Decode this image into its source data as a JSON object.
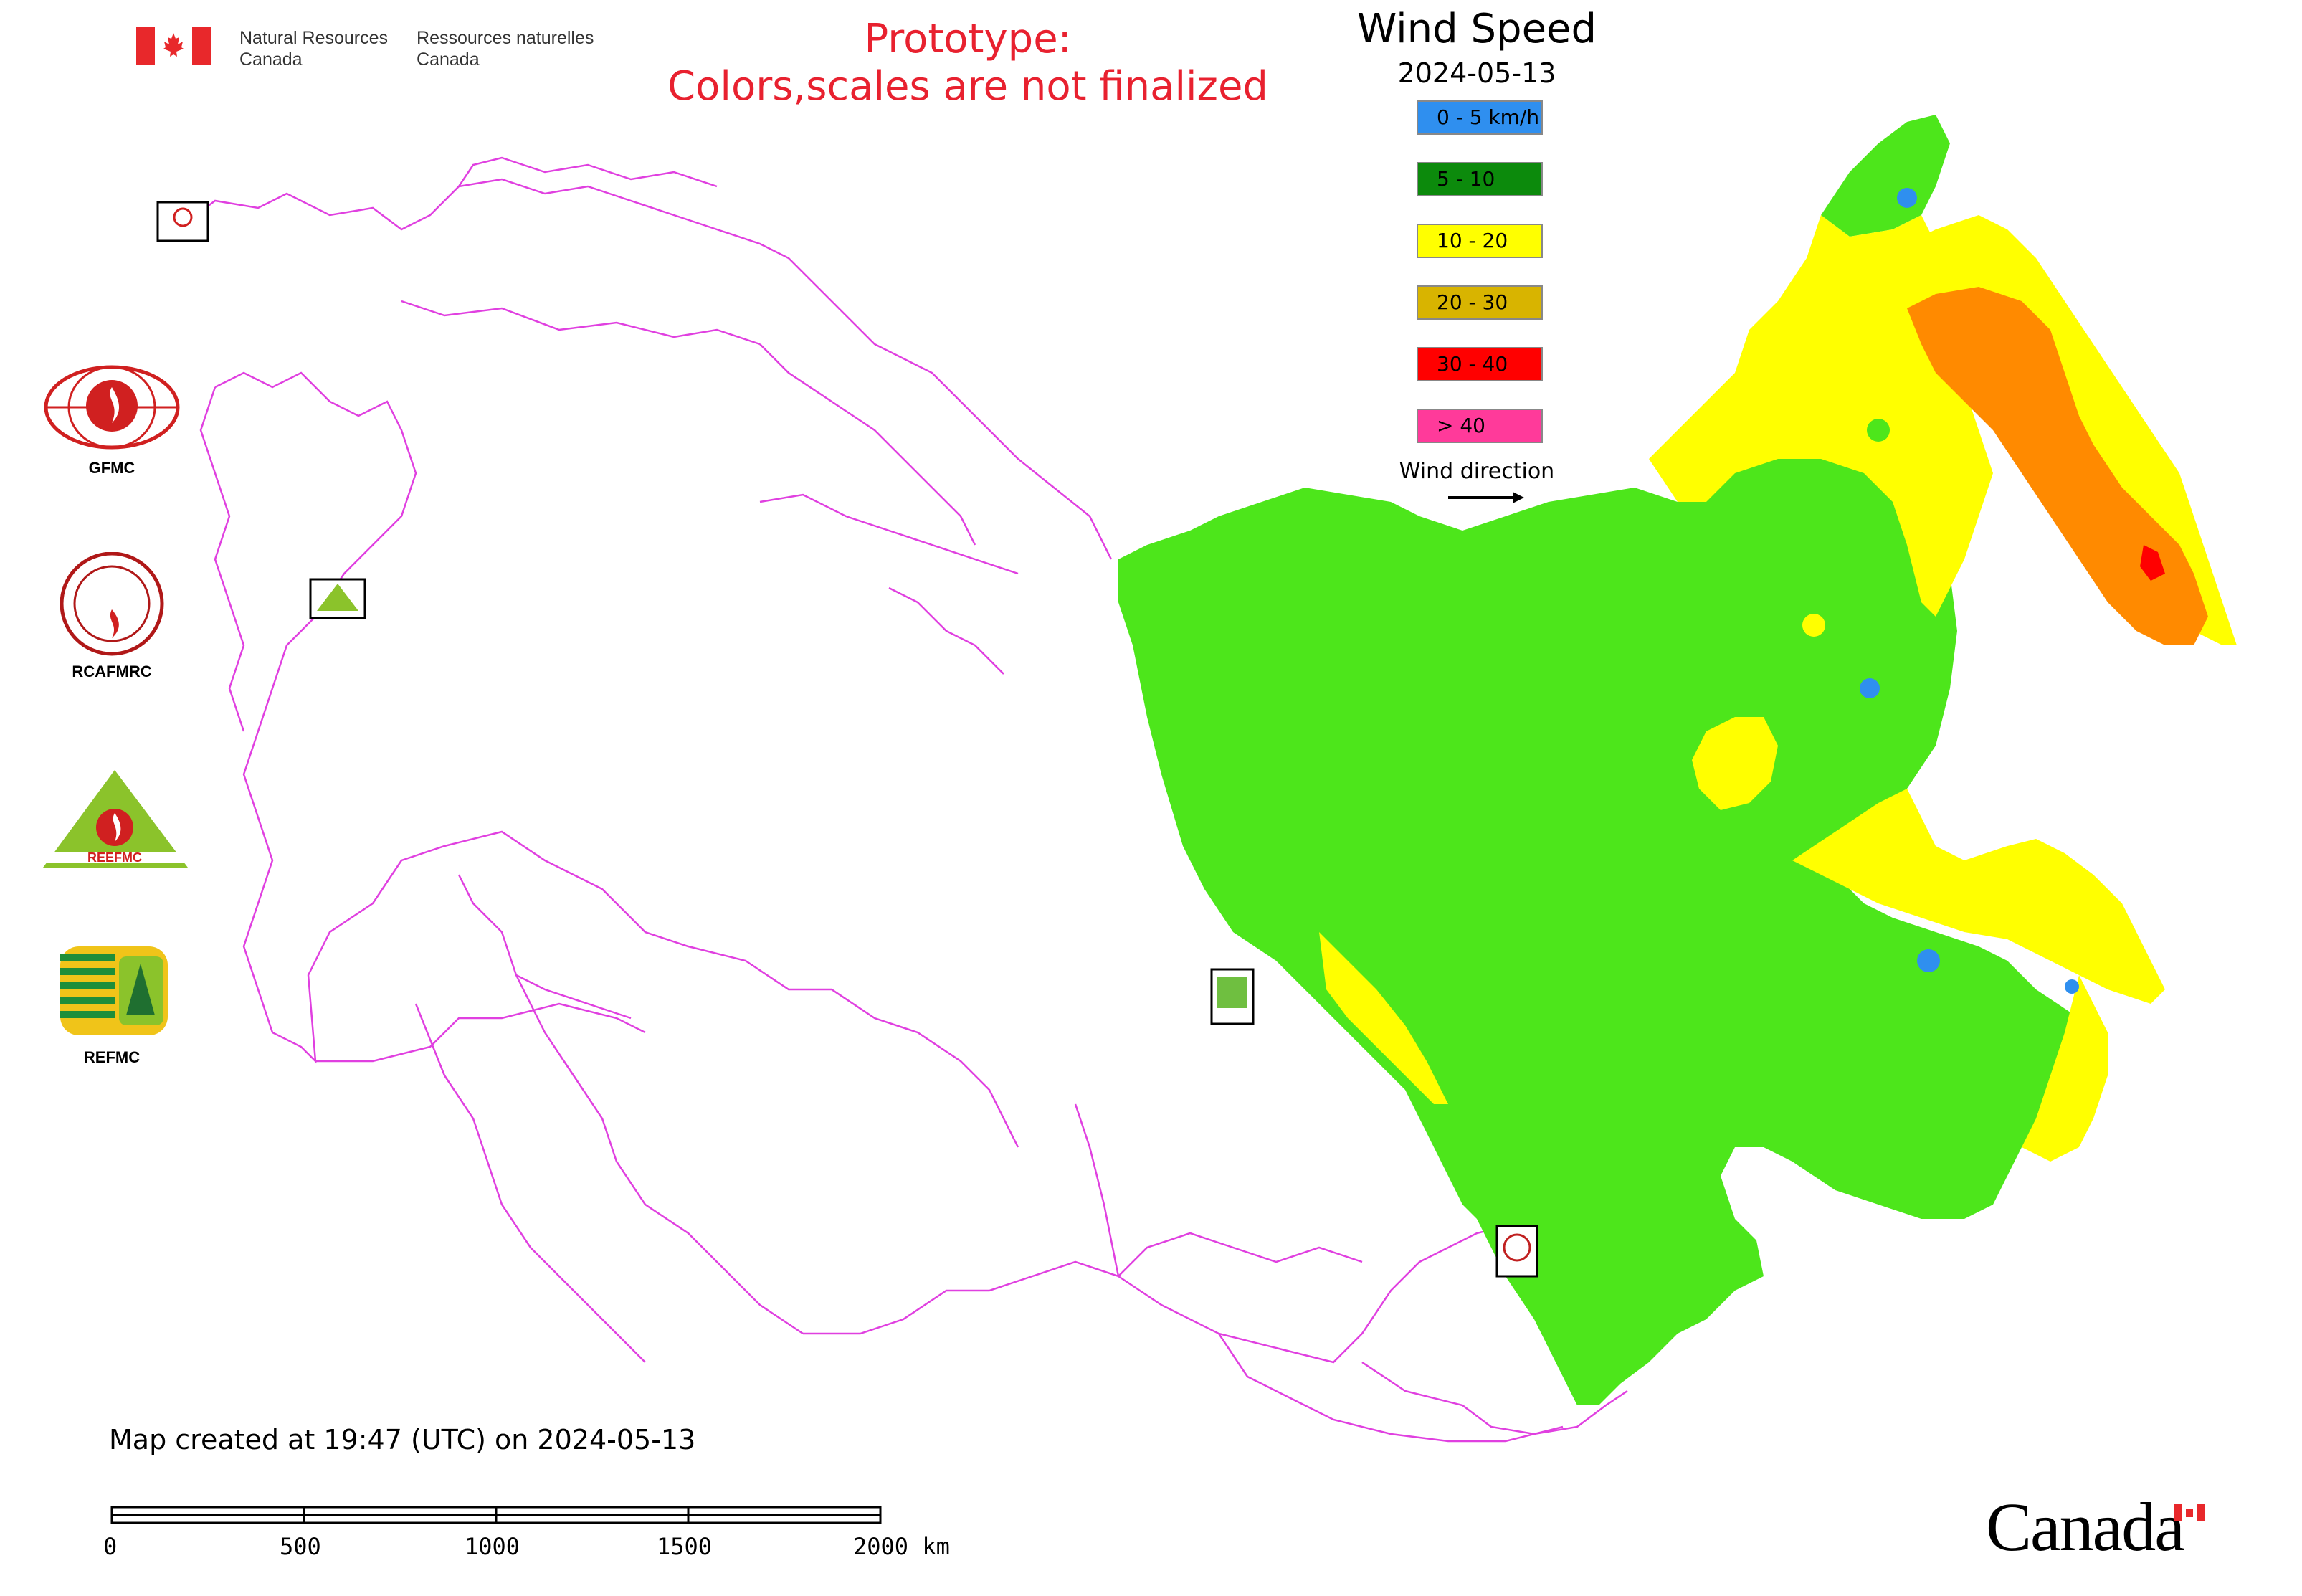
{
  "header": {
    "org_en_line1": "Natural Resources",
    "org_en_line2": "Canada",
    "org_fr_line1": "Ressources naturelles",
    "org_fr_line2": "Canada",
    "prototype_line1": "Prototype:",
    "prototype_line2": "Colors,scales are not finalized"
  },
  "legend": {
    "title": "Wind Speed",
    "date": "2024-05-13",
    "classes": [
      {
        "label": "0 - 5 km/h",
        "color": "#2f8fef"
      },
      {
        "label": "5 - 10",
        "color": "#0c8a0c"
      },
      {
        "label": "10 - 20",
        "color": "#ffff00"
      },
      {
        "label": "20 - 30",
        "color": "#d8b400"
      },
      {
        "label": "30 - 40",
        "color": "#ff0000"
      },
      {
        "label": "> 40",
        "color": "#ff3a9a"
      }
    ],
    "wind_direction_label": "Wind direction"
  },
  "map_colors": {
    "land_green": "#4de61b",
    "yellow": "#ffff00",
    "orange": "#ff8a00",
    "red": "#ff0000",
    "blue": "#2f8fef",
    "boundary": "#e040e0"
  },
  "logos": {
    "gfmc": "GFMC",
    "rcafmrc": "RCAFMRC",
    "reefmc": "REEFMC",
    "refmc": "REFMC"
  },
  "footer": {
    "created": "Map created at 19:47 (UTC) on 2024-05-13",
    "scale_labels": [
      "0",
      "500",
      "1000",
      "1500",
      "2000 km"
    ],
    "wordmark": "Canada"
  }
}
